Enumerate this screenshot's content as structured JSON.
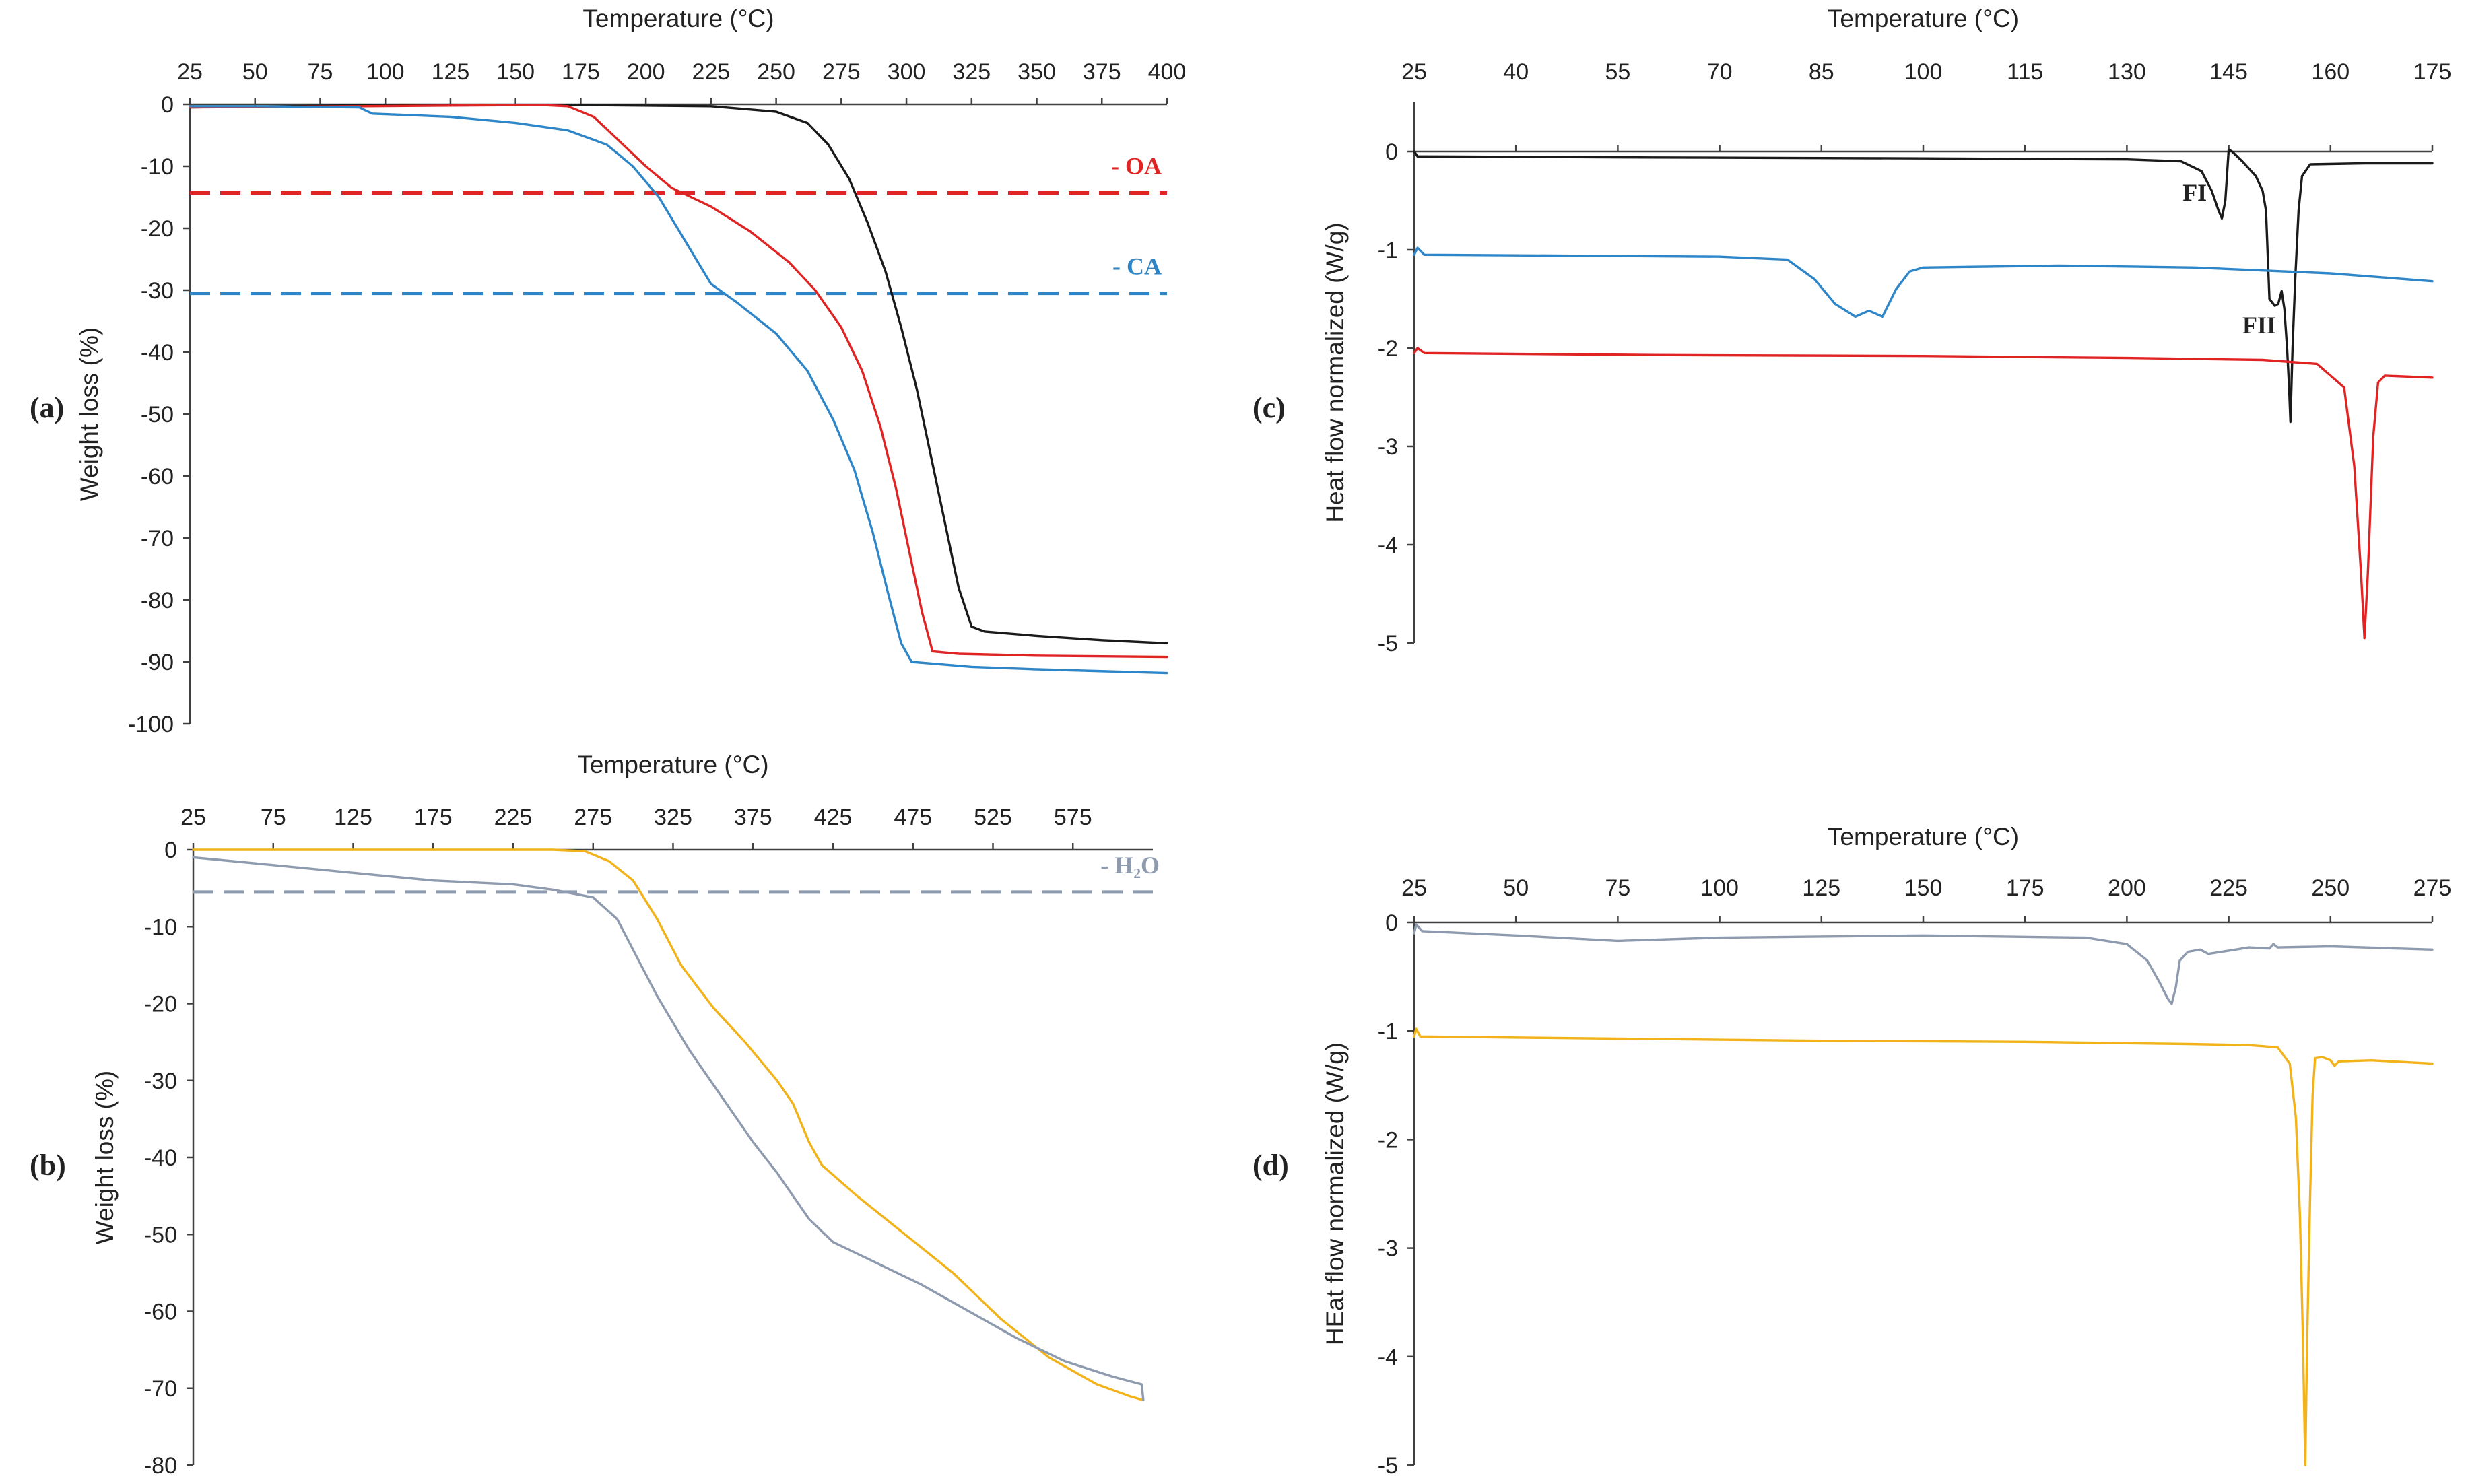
{
  "chart_data": [
    {
      "panel": "(a)",
      "type": "line",
      "xlabel": "Temperature (°C)",
      "ylabel": "Weight loss (%)",
      "x_axis_position": "top",
      "xlim": [
        25,
        400
      ],
      "ylim": [
        -100,
        0
      ],
      "xticks": [
        25,
        50,
        75,
        100,
        125,
        150,
        175,
        200,
        225,
        250,
        275,
        300,
        325,
        350,
        375,
        400
      ],
      "yticks": [
        0,
        -10,
        -20,
        -30,
        -40,
        -50,
        -60,
        -70,
        -80,
        -90,
        -100
      ],
      "grid": false,
      "series": [
        {
          "color": "#1a1a1a",
          "points": [
            [
              25,
              -0.5
            ],
            [
              100,
              -0.1
            ],
            [
              175,
              -0.1
            ],
            [
              225,
              -0.3
            ],
            [
              250,
              -1.2
            ],
            [
              262,
              -3
            ],
            [
              270,
              -6.5
            ],
            [
              278,
              -12
            ],
            [
              285,
              -19
            ],
            [
              292,
              -27
            ],
            [
              298,
              -36
            ],
            [
              304,
              -46
            ],
            [
              310,
              -58
            ],
            [
              316,
              -70
            ],
            [
              320,
              -78
            ],
            [
              325,
              -84.3
            ],
            [
              330,
              -85.1
            ],
            [
              350,
              -85.8
            ],
            [
              375,
              -86.5
            ],
            [
              400,
              -87
            ]
          ]
        },
        {
          "color": "#e02424",
          "points": [
            [
              25,
              -0.5
            ],
            [
              160,
              -0.1
            ],
            [
              170,
              -0.3
            ],
            [
              180,
              -2
            ],
            [
              190,
              -6
            ],
            [
              200,
              -10
            ],
            [
              210,
              -13.5
            ],
            [
              225,
              -16.5
            ],
            [
              240,
              -20.5
            ],
            [
              255,
              -25.5
            ],
            [
              265,
              -30
            ],
            [
              275,
              -36
            ],
            [
              283,
              -43
            ],
            [
              290,
              -52
            ],
            [
              296,
              -62
            ],
            [
              301,
              -72
            ],
            [
              306,
              -82
            ],
            [
              310,
              -88.3
            ],
            [
              320,
              -88.7
            ],
            [
              350,
              -89
            ],
            [
              400,
              -89.2
            ]
          ]
        },
        {
          "color": "#2e86c8",
          "points": [
            [
              25,
              -0.3
            ],
            [
              50,
              -0.3
            ],
            [
              90,
              -0.5
            ],
            [
              95,
              -1.5
            ],
            [
              125,
              -2
            ],
            [
              150,
              -3
            ],
            [
              170,
              -4.2
            ],
            [
              185,
              -6.5
            ],
            [
              195,
              -10
            ],
            [
              205,
              -15
            ],
            [
              215,
              -22
            ],
            [
              225,
              -29
            ],
            [
              235,
              -32
            ],
            [
              250,
              -37
            ],
            [
              262,
              -43
            ],
            [
              272,
              -51
            ],
            [
              280,
              -59
            ],
            [
              287,
              -69
            ],
            [
              293,
              -79
            ],
            [
              298,
              -87
            ],
            [
              302,
              -90
            ],
            [
              325,
              -90.8
            ],
            [
              350,
              -91.2
            ],
            [
              400,
              -91.8
            ]
          ]
        }
      ],
      "reference_lines": [
        {
          "label": "- OA",
          "y": -14.3,
          "color": "#e02424"
        },
        {
          "label": "- CA",
          "y": -30.5,
          "color": "#2e86c8"
        }
      ]
    },
    {
      "panel": "(b)",
      "type": "line",
      "xlabel": "Temperature (°C)",
      "ylabel": "Weight loss (%)",
      "x_axis_position": "top",
      "xlim": [
        25,
        625
      ],
      "ylim": [
        -80,
        0
      ],
      "xticks": [
        25,
        75,
        125,
        175,
        225,
        275,
        325,
        375,
        425,
        475,
        525,
        575
      ],
      "yticks": [
        0,
        -10,
        -20,
        -30,
        -40,
        -50,
        -60,
        -70,
        -80
      ],
      "grid": false,
      "series": [
        {
          "color": "#f2b21a",
          "points": [
            [
              25,
              0
            ],
            [
              250,
              0
            ],
            [
              270,
              -0.2
            ],
            [
              285,
              -1.5
            ],
            [
              300,
              -4
            ],
            [
              315,
              -9
            ],
            [
              330,
              -15
            ],
            [
              350,
              -20.5
            ],
            [
              370,
              -25
            ],
            [
              390,
              -30
            ],
            [
              400,
              -33
            ],
            [
              410,
              -38
            ],
            [
              418,
              -41
            ],
            [
              440,
              -45
            ],
            [
              470,
              -50
            ],
            [
              500,
              -55
            ],
            [
              530,
              -61
            ],
            [
              560,
              -66
            ],
            [
              590,
              -69.5
            ],
            [
              610,
              -71
            ],
            [
              618,
              -71.5
            ]
          ]
        },
        {
          "color": "#8e9aae",
          "points": [
            [
              25,
              -1
            ],
            [
              75,
              -2
            ],
            [
              125,
              -3
            ],
            [
              175,
              -4
            ],
            [
              225,
              -4.5
            ],
            [
              250,
              -5.2
            ],
            [
              275,
              -6.2
            ],
            [
              290,
              -9
            ],
            [
              300,
              -13
            ],
            [
              315,
              -19
            ],
            [
              335,
              -26
            ],
            [
              355,
              -32
            ],
            [
              375,
              -38
            ],
            [
              390,
              -42
            ],
            [
              400,
              -45
            ],
            [
              410,
              -48
            ],
            [
              425,
              -51
            ],
            [
              450,
              -53.5
            ],
            [
              480,
              -56.5
            ],
            [
              510,
              -60
            ],
            [
              540,
              -63.5
            ],
            [
              570,
              -66.5
            ],
            [
              600,
              -68.5
            ],
            [
              618,
              -69.5
            ],
            [
              619,
              -71.5
            ]
          ]
        }
      ],
      "reference_lines": [
        {
          "label": "- H₂O",
          "y": -5.5,
          "color": "#8e9aae"
        }
      ]
    },
    {
      "panel": "(c)",
      "type": "line",
      "xlabel": "Temperature (°C)",
      "ylabel": "Heat flow normalized (W/g)",
      "x_axis_position": "top",
      "xlim": [
        25,
        175
      ],
      "ylim": [
        -5,
        0.5
      ],
      "xticks": [
        25,
        40,
        55,
        70,
        85,
        100,
        115,
        130,
        145,
        160,
        175
      ],
      "yticks": [
        0,
        -1,
        -2,
        -3,
        -4,
        -5
      ],
      "grid": false,
      "series": [
        {
          "color": "#1a1a1a",
          "points": [
            [
              25,
              0
            ],
            [
              25.5,
              -0.05
            ],
            [
              27,
              -0.05
            ],
            [
              60,
              -0.06
            ],
            [
              100,
              -0.07
            ],
            [
              130,
              -0.08
            ],
            [
              138,
              -0.1
            ],
            [
              141,
              -0.2
            ],
            [
              142.5,
              -0.4
            ],
            [
              143.5,
              -0.6
            ],
            [
              144,
              -0.68
            ],
            [
              144.5,
              -0.5
            ],
            [
              145,
              0.02
            ],
            [
              145.5,
              0
            ],
            [
              147,
              -0.1
            ],
            [
              149,
              -0.25
            ],
            [
              150,
              -0.4
            ],
            [
              150.5,
              -0.6
            ],
            [
              151,
              -1.5
            ],
            [
              151.8,
              -1.57
            ],
            [
              152.3,
              -1.55
            ],
            [
              152.8,
              -1.42
            ],
            [
              153.2,
              -1.6
            ],
            [
              153.6,
              -2.0
            ],
            [
              153.9,
              -2.4
            ],
            [
              154.1,
              -2.75
            ],
            [
              154.4,
              -2.0
            ],
            [
              154.8,
              -1.3
            ],
            [
              155.3,
              -0.6
            ],
            [
              155.8,
              -0.25
            ],
            [
              157,
              -0.13
            ],
            [
              165,
              -0.12
            ],
            [
              175,
              -0.12
            ]
          ]
        },
        {
          "color": "#2e86c8",
          "points": [
            [
              25,
              -1.05
            ],
            [
              25.5,
              -0.98
            ],
            [
              26.5,
              -1.05
            ],
            [
              50,
              -1.06
            ],
            [
              70,
              -1.07
            ],
            [
              80,
              -1.1
            ],
            [
              84,
              -1.3
            ],
            [
              87,
              -1.55
            ],
            [
              90,
              -1.68
            ],
            [
              92,
              -1.62
            ],
            [
              94,
              -1.68
            ],
            [
              96,
              -1.4
            ],
            [
              98,
              -1.22
            ],
            [
              100,
              -1.18
            ],
            [
              120,
              -1.16
            ],
            [
              140,
              -1.18
            ],
            [
              160,
              -1.24
            ],
            [
              175,
              -1.32
            ]
          ]
        },
        {
          "color": "#e02424",
          "points": [
            [
              25,
              -2.05
            ],
            [
              25.5,
              -2.0
            ],
            [
              26.5,
              -2.05
            ],
            [
              60,
              -2.07
            ],
            [
              100,
              -2.08
            ],
            [
              130,
              -2.1
            ],
            [
              150,
              -2.12
            ],
            [
              158,
              -2.16
            ],
            [
              162,
              -2.4
            ],
            [
              163.5,
              -3.2
            ],
            [
              164.5,
              -4.3
            ],
            [
              165,
              -4.95
            ],
            [
              165.5,
              -4.3
            ],
            [
              166.3,
              -2.9
            ],
            [
              167,
              -2.35
            ],
            [
              168,
              -2.28
            ],
            [
              175,
              -2.3
            ]
          ]
        }
      ],
      "annotations": [
        {
          "text": "FI",
          "x": 140,
          "y": -0.5
        },
        {
          "text": "FII",
          "x": 149.5,
          "y": -1.85
        }
      ]
    },
    {
      "panel": "(d)",
      "type": "line",
      "xlabel": "Temperature (°C)",
      "ylabel": "HEat flow normalized (W/g)",
      "x_axis_position": "top",
      "xlim": [
        25,
        275
      ],
      "ylim": [
        -5,
        0
      ],
      "xticks": [
        25,
        50,
        75,
        100,
        125,
        150,
        175,
        200,
        225,
        250,
        275
      ],
      "yticks": [
        0,
        -1,
        -2,
        -3,
        -4,
        -5
      ],
      "grid": false,
      "series": [
        {
          "color": "#8e9aae",
          "points": [
            [
              25,
              -0.1
            ],
            [
              25.5,
              -0.02
            ],
            [
              27,
              -0.08
            ],
            [
              50,
              -0.12
            ],
            [
              75,
              -0.17
            ],
            [
              100,
              -0.14
            ],
            [
              150,
              -0.12
            ],
            [
              190,
              -0.14
            ],
            [
              200,
              -0.2
            ],
            [
              205,
              -0.35
            ],
            [
              208,
              -0.55
            ],
            [
              210,
              -0.7
            ],
            [
              211,
              -0.75
            ],
            [
              212,
              -0.6
            ],
            [
              213,
              -0.35
            ],
            [
              215,
              -0.27
            ],
            [
              218,
              -0.25
            ],
            [
              220,
              -0.29
            ],
            [
              225,
              -0.26
            ],
            [
              230,
              -0.23
            ],
            [
              235,
              -0.24
            ],
            [
              236,
              -0.2
            ],
            [
              237,
              -0.23
            ],
            [
              250,
              -0.22
            ],
            [
              275,
              -0.25
            ]
          ]
        },
        {
          "color": "#f2b21a",
          "points": [
            [
              25,
              -1.05
            ],
            [
              25.5,
              -0.98
            ],
            [
              26.5,
              -1.05
            ],
            [
              75,
              -1.07
            ],
            [
              125,
              -1.09
            ],
            [
              175,
              -1.1
            ],
            [
              215,
              -1.12
            ],
            [
              230,
              -1.13
            ],
            [
              237,
              -1.15
            ],
            [
              240,
              -1.3
            ],
            [
              241.5,
              -1.8
            ],
            [
              242.5,
              -2.7
            ],
            [
              243.2,
              -3.8
            ],
            [
              243.8,
              -5
            ],
            [
              244.3,
              -3.8
            ],
            [
              245,
              -2.5
            ],
            [
              245.6,
              -1.6
            ],
            [
              246.2,
              -1.25
            ],
            [
              248,
              -1.24
            ],
            [
              250,
              -1.27
            ],
            [
              251,
              -1.32
            ],
            [
              252,
              -1.28
            ],
            [
              260,
              -1.27
            ],
            [
              275,
              -1.3
            ]
          ]
        }
      ]
    }
  ]
}
